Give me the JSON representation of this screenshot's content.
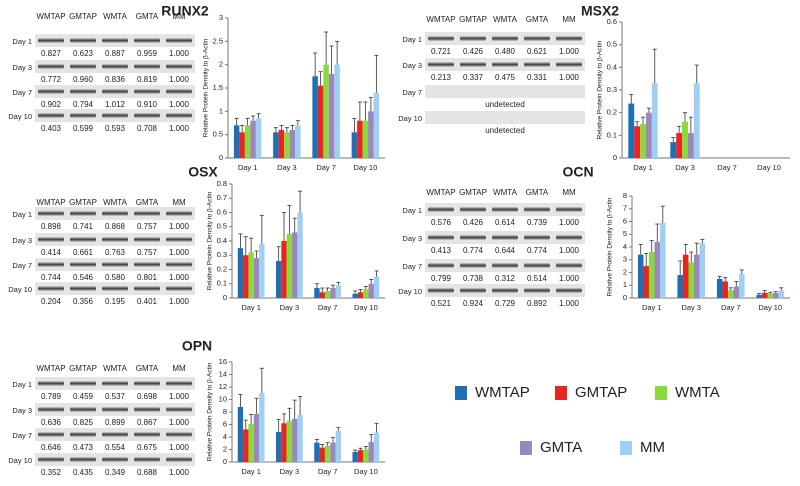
{
  "chart_data": [
    {
      "type": "bar",
      "title": "RUNX2",
      "y_label": "Relative Protein Density to β-Actin",
      "categories": [
        "Day 1",
        "Day 3",
        "Day 7",
        "Day 10"
      ],
      "series": [
        {
          "values": [
            0.7,
            0.55,
            1.75,
            0.55
          ],
          "errors": [
            0.15,
            0.1,
            0.5,
            0.3
          ]
        },
        {
          "values": [
            0.55,
            0.6,
            1.55,
            0.8
          ],
          "errors": [
            0.15,
            0.1,
            0.3,
            0.4
          ]
        },
        {
          "values": [
            0.7,
            0.55,
            2.0,
            0.8
          ],
          "errors": [
            0.15,
            0.1,
            0.7,
            0.4
          ]
        },
        {
          "values": [
            0.8,
            0.6,
            1.8,
            1.0
          ],
          "errors": [
            0.1,
            0.1,
            0.6,
            0.3
          ]
        },
        {
          "values": [
            0.85,
            0.7,
            2.0,
            1.4
          ],
          "errors": [
            0.1,
            0.1,
            0.5,
            0.8
          ]
        }
      ],
      "ylim": [
        0,
        3
      ],
      "yticks": [
        0,
        0.5,
        1,
        1.5,
        2,
        2.5,
        3
      ]
    },
    {
      "type": "bar",
      "title": "MSX2",
      "y_label": "Relative Protein Density to β-Actin",
      "categories": [
        "Day 1",
        "Day 3",
        "Day 7",
        "Day 10"
      ],
      "series": [
        {
          "values": [
            0.24,
            0.07,
            null,
            null
          ],
          "errors": [
            0.04,
            0.02,
            null,
            null
          ]
        },
        {
          "values": [
            0.14,
            0.11,
            null,
            null
          ],
          "errors": [
            0.02,
            0.03,
            null,
            null
          ]
        },
        {
          "values": [
            0.15,
            0.16,
            null,
            null
          ],
          "errors": [
            0.03,
            0.04,
            null,
            null
          ]
        },
        {
          "values": [
            0.2,
            0.11,
            null,
            null
          ],
          "errors": [
            0.02,
            0.07,
            null,
            null
          ]
        },
        {
          "values": [
            0.33,
            0.33,
            null,
            null
          ],
          "errors": [
            0.15,
            0.08,
            null,
            null
          ]
        }
      ],
      "ylim": [
        0,
        0.6
      ],
      "yticks": [
        0,
        0.1,
        0.2,
        0.3,
        0.4,
        0.5,
        0.6
      ]
    },
    {
      "type": "bar",
      "title": "OSX",
      "y_label": "Relative Protein Density to β-Actin",
      "categories": [
        "Day 1",
        "Day 3",
        "Day 7",
        "Day 10"
      ],
      "series": [
        {
          "values": [
            0.35,
            0.26,
            0.07,
            0.03
          ],
          "errors": [
            0.1,
            0.1,
            0.03,
            0.02
          ]
        },
        {
          "values": [
            0.3,
            0.4,
            0.04,
            0.04
          ],
          "errors": [
            0.13,
            0.2,
            0.03,
            0.02
          ]
        },
        {
          "values": [
            0.32,
            0.45,
            0.05,
            0.06
          ],
          "errors": [
            0.1,
            0.2,
            0.02,
            0.02
          ]
        },
        {
          "values": [
            0.28,
            0.46,
            0.07,
            0.1
          ],
          "errors": [
            0.05,
            0.1,
            0.02,
            0.03
          ]
        },
        {
          "values": [
            0.38,
            0.6,
            0.09,
            0.15
          ],
          "errors": [
            0.2,
            0.15,
            0.02,
            0.04
          ]
        }
      ],
      "ylim": [
        0,
        0.8
      ],
      "yticks": [
        0,
        0.1,
        0.2,
        0.3,
        0.4,
        0.5,
        0.6,
        0.7,
        0.8
      ]
    },
    {
      "type": "bar",
      "title": "OCN",
      "y_label": "Relative Protein Density to β-Actin",
      "categories": [
        "Day 1",
        "Day 3",
        "Day 7",
        "Day 10"
      ],
      "series": [
        {
          "values": [
            3.4,
            1.8,
            1.5,
            0.25
          ],
          "errors": [
            0.8,
            1.1,
            0.2,
            0.1
          ]
        },
        {
          "values": [
            2.5,
            3.4,
            1.3,
            0.4
          ],
          "errors": [
            1,
            0.8,
            0.3,
            0.2
          ]
        },
        {
          "values": [
            3.6,
            2.8,
            0.6,
            0.35
          ],
          "errors": [
            0.9,
            0.8,
            0.2,
            0.1
          ]
        },
        {
          "values": [
            4.4,
            3.4,
            0.9,
            0.4
          ],
          "errors": [
            1.4,
            0.9,
            0.4,
            0.1
          ]
        },
        {
          "values": [
            5.9,
            4.3,
            1.9,
            0.6
          ],
          "errors": [
            1.3,
            0.3,
            0.3,
            0.2
          ]
        }
      ],
      "ylim": [
        0,
        8
      ],
      "yticks": [
        0,
        1,
        2,
        3,
        4,
        5,
        6,
        7,
        8
      ]
    },
    {
      "type": "bar",
      "title": "OPN",
      "y_label": "Relative Protein Density to β-Actin",
      "categories": [
        "Day 1",
        "Day 3",
        "Day 7",
        "Day 10"
      ],
      "series": [
        {
          "values": [
            8.8,
            4.8,
            3.1,
            1.6
          ],
          "errors": [
            2,
            2,
            0.5,
            0.3
          ]
        },
        {
          "values": [
            5.2,
            6.2,
            2.3,
            1.9
          ],
          "errors": [
            1.5,
            1.5,
            0.5,
            0.3
          ]
        },
        {
          "values": [
            6.1,
            6.6,
            2.6,
            2.0
          ],
          "errors": [
            1.5,
            2,
            0.5,
            0.5
          ]
        },
        {
          "values": [
            7.7,
            6.9,
            3.1,
            3.2
          ],
          "errors": [
            2.5,
            3,
            0.8,
            1.2
          ]
        },
        {
          "values": [
            11,
            7.5,
            5.0,
            4.7
          ],
          "errors": [
            4,
            3,
            0.5,
            1.5
          ]
        }
      ],
      "ylim": [
        0,
        16
      ],
      "yticks": [
        0,
        2,
        4,
        6,
        8,
        10,
        12,
        14,
        16
      ]
    }
  ],
  "legend": [
    {
      "name": "WMTAP",
      "color": "#1f6fb5"
    },
    {
      "name": "GMTAP",
      "color": "#e8261f"
    },
    {
      "name": "WMTA",
      "color": "#8cd93b"
    },
    {
      "name": "GMTA",
      "color": "#9b86bd"
    },
    {
      "name": "MM",
      "color": "#9fcff2"
    }
  ],
  "blots": [
    {
      "columns": [
        "WMTAP",
        "GMTAP",
        "WMTA",
        "GMTA",
        "MM"
      ],
      "rows": [
        {
          "label": "Day 1",
          "values": [
            "0.827",
            "0.623",
            "0.887",
            "0.959",
            "1.000"
          ]
        },
        {
          "label": "Day 3",
          "values": [
            "0.772",
            "0.960",
            "0.836",
            "0.819",
            "1.000"
          ]
        },
        {
          "label": "Day 7",
          "values": [
            "0.902",
            "0.794",
            "1.012",
            "0.910",
            "1.000"
          ]
        },
        {
          "label": "Day 10",
          "values": [
            "0.403",
            "0.599",
            "0.593",
            "0.708",
            "1.000"
          ]
        }
      ]
    },
    {
      "columns": [
        "WMTAP",
        "GMTAP",
        "WMTA",
        "GMTA",
        "MM"
      ],
      "rows": [
        {
          "label": "Day 1",
          "values": [
            "0.721",
            "0.426",
            "0.480",
            "0.621",
            "1.000"
          ]
        },
        {
          "label": "Day 3",
          "values": [
            "0.213",
            "0.337",
            "0.475",
            "0.331",
            "1.000"
          ]
        },
        {
          "label": "Day 7",
          "note": "undetected"
        },
        {
          "label": "Day 10",
          "note": "undetected"
        }
      ]
    },
    {
      "columns": [
        "WMTAP",
        "GMTAP",
        "WMTA",
        "GMTA",
        "MM"
      ],
      "rows": [
        {
          "label": "Day 1",
          "values": [
            "0.898",
            "0.741",
            "0.868",
            "0.757",
            "1.000"
          ]
        },
        {
          "label": "Day 3",
          "values": [
            "0.414",
            "0.661",
            "0.763",
            "0.757",
            "1.000"
          ]
        },
        {
          "label": "Day 7",
          "values": [
            "0.744",
            "0.546",
            "0.580",
            "0.801",
            "1.000"
          ]
        },
        {
          "label": "Day 10",
          "values": [
            "0.204",
            "0.356",
            "0.195",
            "0.401",
            "1.000"
          ]
        }
      ]
    },
    {
      "columns": [
        "WMTAP",
        "GMTAP",
        "WMTA",
        "GMTA",
        "MM"
      ],
      "rows": [
        {
          "label": "Day 1",
          "values": [
            "0.576",
            "0.426",
            "0.614",
            "0.739",
            "1.000"
          ]
        },
        {
          "label": "Day 3",
          "values": [
            "0.413",
            "0.774",
            "0.644",
            "0.774",
            "1.000"
          ]
        },
        {
          "label": "Day 7",
          "values": [
            "0.799",
            "0.738",
            "0.312",
            "0.514",
            "1.000"
          ]
        },
        {
          "label": "Day 10",
          "values": [
            "0.521",
            "0.924",
            "0.729",
            "0.892",
            "1.000"
          ]
        }
      ]
    },
    {
      "columns": [
        "WMTAP",
        "GMTAP",
        "WMTA",
        "GMTA",
        "MM"
      ],
      "rows": [
        {
          "label": "Day 1",
          "values": [
            "0.789",
            "0.459",
            "0.537",
            "0.698",
            "1.000"
          ]
        },
        {
          "label": "Day 3",
          "values": [
            "0.636",
            "0.825",
            "0.899",
            "0.867",
            "1.000"
          ]
        },
        {
          "label": "Day 7",
          "values": [
            "0.646",
            "0.473",
            "0.554",
            "0.675",
            "1.000"
          ]
        },
        {
          "label": "Day 10",
          "values": [
            "0.352",
            "0.435",
            "0.349",
            "0.688",
            "1.000"
          ]
        }
      ]
    }
  ]
}
